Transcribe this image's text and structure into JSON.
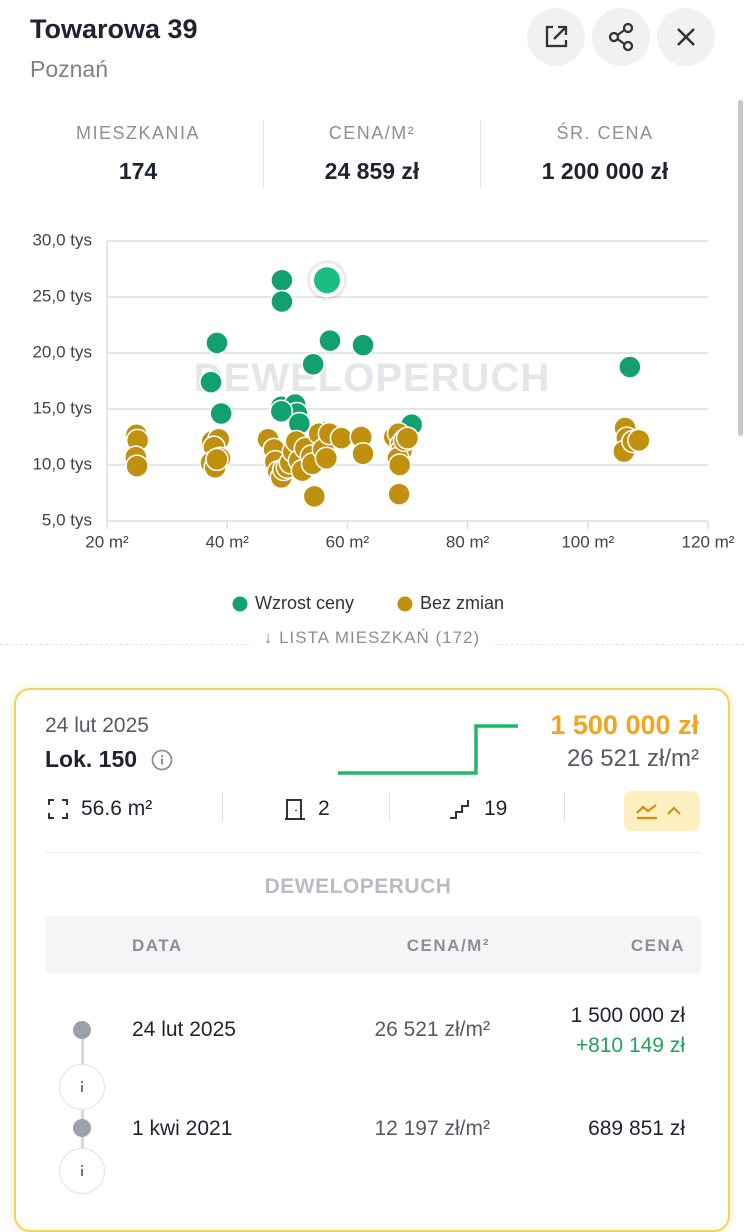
{
  "header": {
    "title": "Towarowa 39",
    "subtitle": "Poznań"
  },
  "stats": [
    {
      "label": "MIESZKANIA",
      "value": "174"
    },
    {
      "label": "CENA/M²",
      "value": "24 859 zł"
    },
    {
      "label": "ŚR. CENA",
      "value": "1 200 000 zł"
    }
  ],
  "chart_data": {
    "type": "scatter",
    "watermark": "DEWELOPERUCH",
    "xlim": [
      20,
      120
    ],
    "xticks": [
      {
        "value": 20,
        "label": "20 m²"
      },
      {
        "value": 40,
        "label": "40 m²"
      },
      {
        "value": 60,
        "label": "60 m²"
      },
      {
        "value": 80,
        "label": "80 m²"
      },
      {
        "value": 100,
        "label": "100 m²"
      },
      {
        "value": 120,
        "label": "120 m²"
      }
    ],
    "ylim": [
      5,
      30
    ],
    "yticks": [
      {
        "value": 5,
        "label": "5,0 tys"
      },
      {
        "value": 10,
        "label": "10,0 tys"
      },
      {
        "value": 15,
        "label": "15,0 tys"
      },
      {
        "value": 20,
        "label": "20,0 tys"
      },
      {
        "value": 25,
        "label": "25,0 tys"
      },
      {
        "value": 30,
        "label": "30,0 tys"
      }
    ],
    "grid": true,
    "highlight": {
      "series": 0,
      "index": 2,
      "color": "#1cbd82"
    },
    "series": [
      {
        "name": "Wzrost ceny",
        "color": "#13a06f",
        "x": [
          49.1,
          49.1,
          56.6,
          38.3,
          57.1,
          62.6,
          54.3,
          37.3,
          39,
          49,
          51.3,
          51.6,
          49,
          52,
          56.2,
          70.7,
          107
        ],
        "values": [
          26.5,
          24.6,
          26.5,
          20.9,
          21.1,
          20.7,
          19,
          17.4,
          14.6,
          15.2,
          15.4,
          14.6,
          14.8,
          13.7,
          12.9,
          13.6,
          18.75
        ]
      },
      {
        "name": "Bez zmian",
        "color": "#c0900f",
        "x": [
          24.9,
          25.1,
          24.8,
          25,
          37.5,
          38.6,
          37.8,
          38.8,
          37.3,
          38,
          38.3,
          46.8,
          47.8,
          48,
          48.5,
          49,
          49.4,
          50,
          50.5,
          51,
          51.5,
          52,
          52.5,
          53,
          54,
          54.2,
          54.5,
          55.3,
          56,
          56.5,
          57,
          59,
          62.3,
          62.6,
          67.8,
          68.5,
          68.9,
          69,
          68.4,
          68.7,
          69.5,
          70,
          68.6,
          106.2,
          106.5,
          106,
          107.5,
          108.5
        ],
        "values": [
          12.7,
          12.2,
          10.7,
          9.9,
          12.1,
          12.3,
          11.6,
          10.6,
          10.2,
          9.8,
          10.5,
          12.3,
          11.4,
          10.3,
          9.4,
          8.9,
          9.6,
          9.8,
          10.2,
          11.2,
          12.1,
          10.4,
          9.5,
          11.5,
          10.8,
          10.1,
          7.2,
          12.8,
          11.4,
          10.6,
          12.8,
          12.4,
          12.5,
          11,
          12.5,
          12.8,
          11.8,
          11.3,
          10.6,
          10,
          12.2,
          12.4,
          7.4,
          13.3,
          12.4,
          11.2,
          12.1,
          12.2
        ]
      }
    ]
  },
  "list_link": "↓ LISTA MIESZKAŃ (172)",
  "listing": {
    "date": "24 lut 2025",
    "name": "Lok. 150",
    "price": "1 500 000 zł",
    "price_per_m2": "26 521 zł/m²",
    "area": "56.6 m²",
    "rooms": "2",
    "floor": "19",
    "logo": "DEWELOPERUCH",
    "history": {
      "columns": [
        "DATA",
        "CENA/M²",
        "CENA"
      ],
      "rows": [
        {
          "date": "24 lut 2025",
          "price_per_m2": "26 521 zł/m²",
          "price": "1 500 000 zł",
          "change": "+810 149 zł"
        },
        {
          "date": "1 kwi 2021",
          "price_per_m2": "12 197 zł/m²",
          "price": "689 851 zł"
        }
      ]
    }
  }
}
